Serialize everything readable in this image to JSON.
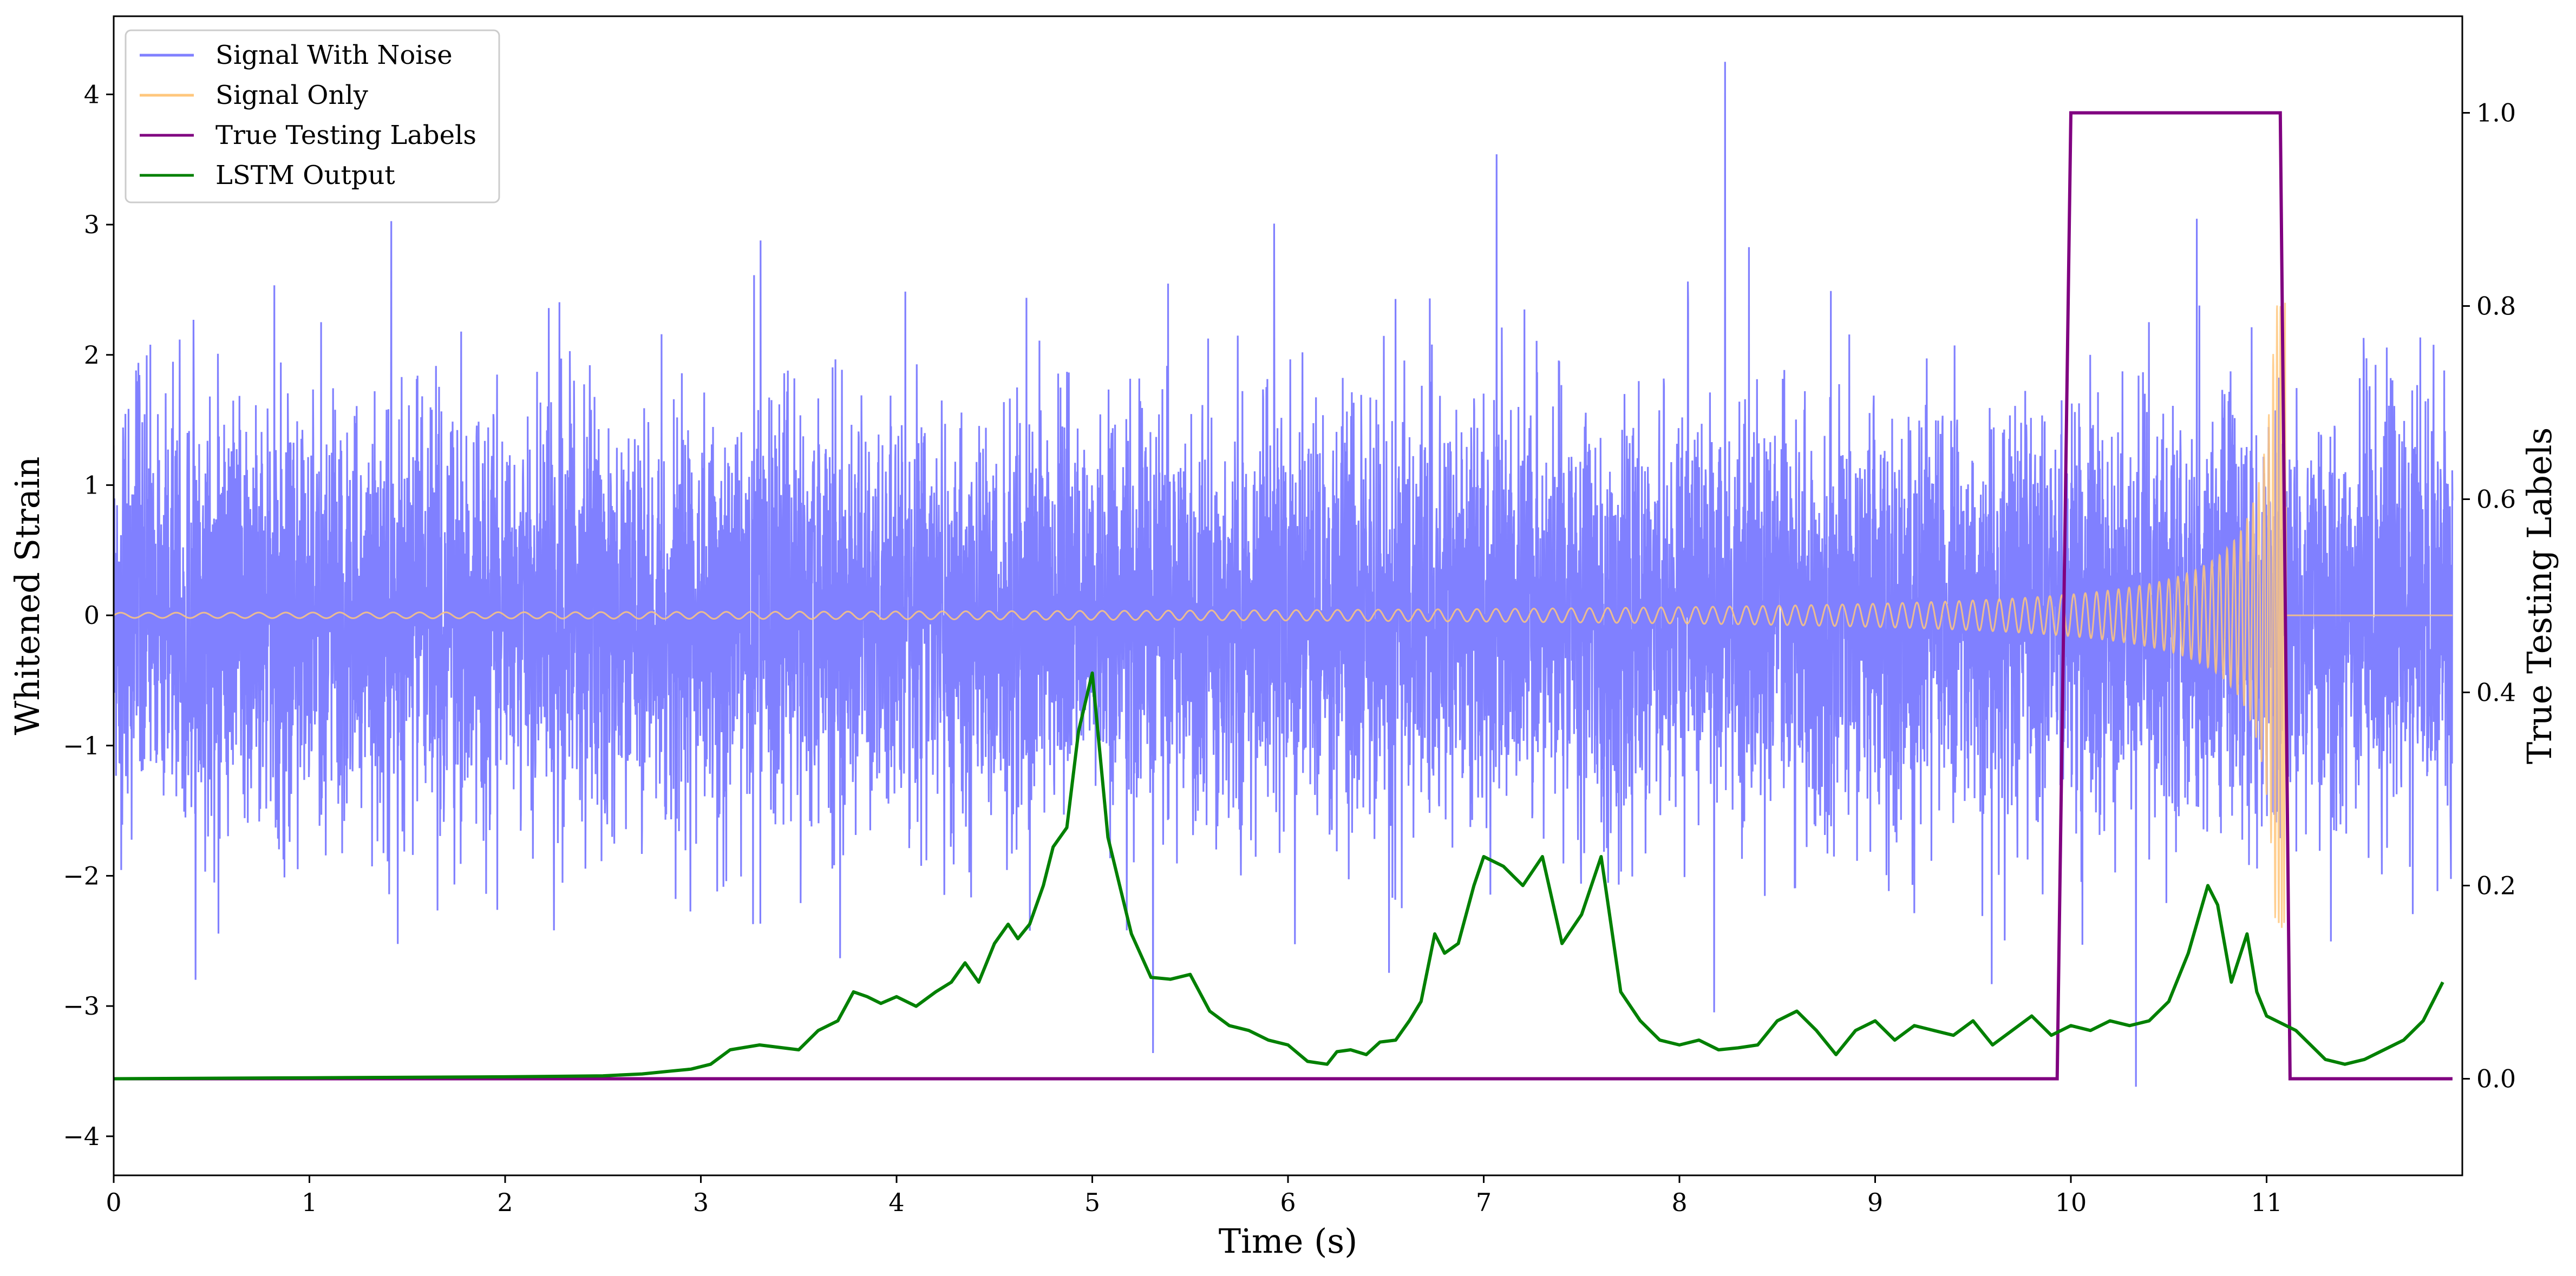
{
  "chart_data": {
    "type": "line",
    "title": "",
    "xlabel": "Time (s)",
    "ylabel_left": "Whitened Strain",
    "ylabel_right": "True Testing Labels",
    "xlim": [
      0,
      12
    ],
    "ylim_left": [
      -4.3,
      4.6
    ],
    "ylim_right": [
      -0.1,
      1.1
    ],
    "x_ticks": [
      0,
      1,
      2,
      3,
      4,
      5,
      6,
      7,
      8,
      9,
      10,
      11
    ],
    "y_left_ticks": [
      -4,
      -3,
      -2,
      -1,
      0,
      1,
      2,
      3,
      4
    ],
    "y_right_ticks": [
      0.0,
      0.2,
      0.4,
      0.6,
      0.8,
      1.0
    ],
    "x_tick_labels": [
      "0",
      "1",
      "2",
      "3",
      "4",
      "5",
      "6",
      "7",
      "8",
      "9",
      "10",
      "11"
    ],
    "y_left_tick_labels": [
      "−4",
      "−3",
      "−2",
      "−1",
      "0",
      "1",
      "2",
      "3",
      "4"
    ],
    "y_right_tick_labels": [
      "0.0",
      "0.2",
      "0.4",
      "0.6",
      "0.8",
      "1.0"
    ],
    "grid": false,
    "legend_position": "top-left",
    "series": [
      {
        "name": "Signal With Noise",
        "axis": "left",
        "color": "#8080ff",
        "description_values": "dense noise, approx N(0,0.8), range -3.9 to 4.25",
        "noise_std": 0.8,
        "noise_min": -3.9,
        "noise_max": 4.25
      },
      {
        "name": "Signal Only",
        "axis": "left",
        "color": "#ffc77d",
        "chirp_amplitude_start": 0.02,
        "chirp_amplitude_peak": 2.4,
        "chirp_merger_time": 11.1
      },
      {
        "name": "True Testing Labels",
        "axis": "right",
        "color": "#800080",
        "x": [
          0,
          9.93,
          10.0,
          11.07,
          11.12,
          11.95
        ],
        "y": [
          0,
          0,
          1,
          1,
          0,
          0
        ]
      },
      {
        "name": "LSTM Output",
        "axis": "right",
        "color": "#008000",
        "x": [
          0,
          1.0,
          2.0,
          2.5,
          2.7,
          2.85,
          2.95,
          3.05,
          3.15,
          3.3,
          3.5,
          3.6,
          3.7,
          3.78,
          3.85,
          3.92,
          4.0,
          4.1,
          4.2,
          4.28,
          4.35,
          4.42,
          4.5,
          4.57,
          4.62,
          4.68,
          4.75,
          4.8,
          4.87,
          4.93,
          5.0,
          5.08,
          5.2,
          5.3,
          5.4,
          5.5,
          5.6,
          5.7,
          5.8,
          5.9,
          6.0,
          6.1,
          6.2,
          6.25,
          6.32,
          6.4,
          6.47,
          6.55,
          6.62,
          6.68,
          6.75,
          6.8,
          6.87,
          6.95,
          7.0,
          7.1,
          7.2,
          7.3,
          7.4,
          7.5,
          7.6,
          7.7,
          7.8,
          7.9,
          8.0,
          8.1,
          8.2,
          8.3,
          8.4,
          8.5,
          8.6,
          8.7,
          8.8,
          8.9,
          9.0,
          9.1,
          9.2,
          9.3,
          9.4,
          9.5,
          9.6,
          9.7,
          9.8,
          9.9,
          10.0,
          10.1,
          10.2,
          10.3,
          10.4,
          10.5,
          10.6,
          10.7,
          10.75,
          10.82,
          10.9,
          10.95,
          11.0,
          11.05,
          11.1,
          11.15,
          11.2,
          11.3,
          11.4,
          11.5,
          11.6,
          11.7,
          11.8,
          11.9
        ],
        "y": [
          0,
          0.001,
          0.002,
          0.003,
          0.005,
          0.008,
          0.01,
          0.015,
          0.03,
          0.035,
          0.03,
          0.05,
          0.06,
          0.09,
          0.085,
          0.078,
          0.085,
          0.075,
          0.09,
          0.1,
          0.12,
          0.1,
          0.14,
          0.16,
          0.145,
          0.16,
          0.2,
          0.24,
          0.26,
          0.36,
          0.42,
          0.25,
          0.15,
          0.105,
          0.103,
          0.108,
          0.07,
          0.055,
          0.05,
          0.04,
          0.035,
          0.018,
          0.015,
          0.028,
          0.03,
          0.025,
          0.038,
          0.04,
          0.06,
          0.08,
          0.15,
          0.13,
          0.14,
          0.2,
          0.23,
          0.22,
          0.2,
          0.23,
          0.14,
          0.17,
          0.23,
          0.09,
          0.06,
          0.04,
          0.035,
          0.04,
          0.03,
          0.032,
          0.035,
          0.06,
          0.07,
          0.05,
          0.025,
          0.05,
          0.06,
          0.04,
          0.055,
          0.05,
          0.045,
          0.06,
          0.035,
          0.05,
          0.065,
          0.045,
          0.055,
          0.05,
          0.06,
          0.055,
          0.06,
          0.08,
          0.13,
          0.2,
          0.18,
          0.1,
          0.15,
          0.09,
          0.065,
          0.06,
          0.055,
          0.05,
          0.04,
          0.02,
          0.015,
          0.02,
          0.03,
          0.04,
          0.06,
          0.1
        ]
      }
    ]
  }
}
